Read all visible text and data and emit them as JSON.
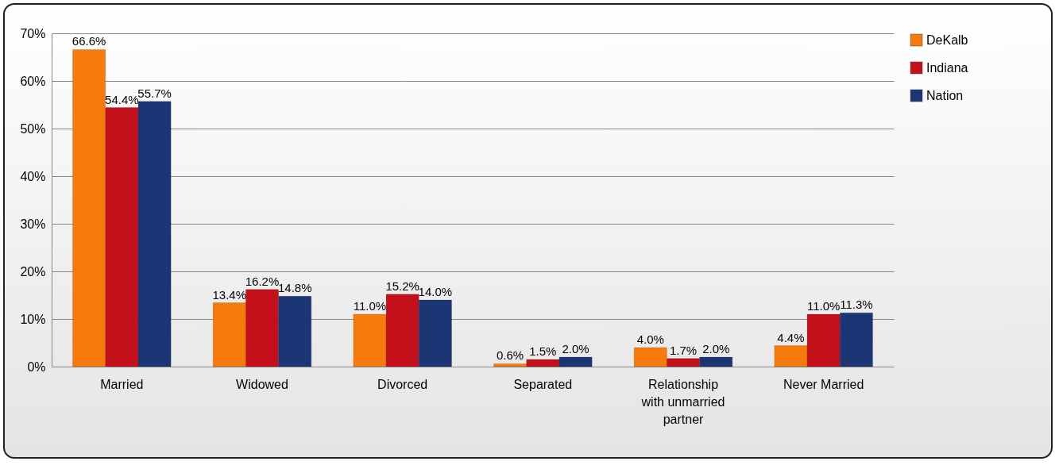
{
  "chart_data": {
    "type": "bar",
    "categories": [
      "Married",
      "Widowed",
      "Divorced",
      "Separated",
      "Relationship with unmarried partner",
      "Never Married"
    ],
    "series": [
      {
        "name": "DeKalb",
        "color": "#f77b0c",
        "values": [
          66.6,
          13.4,
          11.0,
          0.6,
          4.0,
          4.4
        ],
        "value_labels": [
          "66.6%",
          "13.4%",
          "11.0%",
          "0.6%",
          "4.0%",
          "4.4%"
        ]
      },
      {
        "name": "Indiana",
        "color": "#c3101a",
        "values": [
          54.4,
          16.2,
          15.2,
          1.5,
          1.7,
          11.0
        ],
        "value_labels": [
          "54.4%",
          "16.2%",
          "15.2%",
          "1.5%",
          "1.7%",
          "11.0%"
        ]
      },
      {
        "name": "Nation",
        "color": "#1c3575",
        "values": [
          55.7,
          14.8,
          14.0,
          2.0,
          2.0,
          11.3
        ],
        "value_labels": [
          "55.7%",
          "14.8%",
          "14.0%",
          "2.0%",
          "2.0%",
          "11.3%"
        ]
      }
    ],
    "ylim": [
      0,
      70
    ],
    "yticks": [
      {
        "value": 0,
        "label": "0%"
      },
      {
        "value": 10,
        "label": "10%"
      },
      {
        "value": 20,
        "label": "20%"
      },
      {
        "value": 30,
        "label": "30%"
      },
      {
        "value": 40,
        "label": "40%"
      },
      {
        "value": 50,
        "label": "50%"
      },
      {
        "value": 60,
        "label": "60%"
      },
      {
        "value": 70,
        "label": "70%"
      }
    ],
    "grid": "y",
    "legend": "right"
  }
}
